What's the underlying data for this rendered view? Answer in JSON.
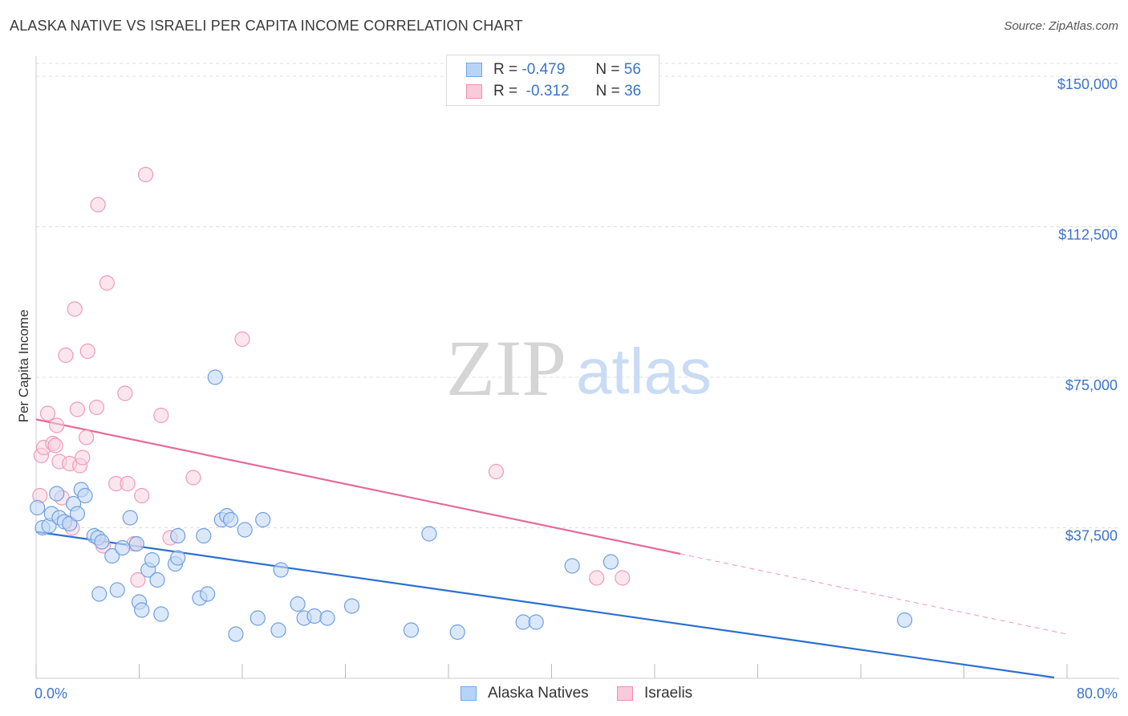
{
  "header": {
    "title": "ALASKA NATIVE VS ISRAELI PER CAPITA INCOME CORRELATION CHART",
    "source": "Source: ZipAtlas.com"
  },
  "legend": {
    "rows": [
      {
        "r_label": "R =",
        "r_value": "-0.479",
        "n_label": "N =",
        "n_value": "56",
        "color": "#6fa8f0",
        "fill": "#b9d3f7"
      },
      {
        "r_label": "R =",
        "r_value": "-0.312",
        "n_label": "N =",
        "n_value": "36",
        "color": "#f08fb0",
        "fill": "#f9cad9"
      }
    ]
  },
  "watermark": {
    "zip": "ZIP",
    "atlas": "atlas"
  },
  "colors": {
    "blue_stroke": "#6f9fe0",
    "blue_fill": "#c3d8f5",
    "blue_line": "#2e6fcf",
    "pink_stroke": "#ef9ab7",
    "pink_fill": "#f9d2df",
    "pink_line": "#e66b95"
  },
  "chart_data": {
    "type": "scatter",
    "title": "ALASKA NATIVE VS ISRAELI PER CAPITA INCOME CORRELATION CHART",
    "xlabel": "",
    "ylabel": "Per Capita Income",
    "xlim": [
      0,
      80
    ],
    "ylim": [
      0,
      155000
    ],
    "x_tick_labels": [
      "0.0%",
      "80.0%"
    ],
    "y_ticks": [
      {
        "value": 37500,
        "label": "$37,500"
      },
      {
        "value": 75000,
        "label": "$75,000"
      },
      {
        "value": 112500,
        "label": "$112,500"
      },
      {
        "value": 150000,
        "label": "$150,000"
      }
    ],
    "series": [
      {
        "name": "Alaska Natives",
        "points": [
          [
            0.1,
            42500
          ],
          [
            0.5,
            37500
          ],
          [
            1.0,
            38000
          ],
          [
            1.2,
            41000
          ],
          [
            1.6,
            46000
          ],
          [
            1.8,
            40000
          ],
          [
            2.2,
            39000
          ],
          [
            2.6,
            38500
          ],
          [
            2.9,
            43500
          ],
          [
            3.2,
            41000
          ],
          [
            3.5,
            47000
          ],
          [
            3.8,
            45500
          ],
          [
            4.5,
            35500
          ],
          [
            4.8,
            35000
          ],
          [
            5.1,
            34000
          ],
          [
            4.9,
            21000
          ],
          [
            5.9,
            30500
          ],
          [
            6.3,
            22000
          ],
          [
            6.7,
            32500
          ],
          [
            7.3,
            40000
          ],
          [
            7.8,
            33500
          ],
          [
            8.0,
            19000
          ],
          [
            8.2,
            17000
          ],
          [
            8.7,
            27000
          ],
          [
            9.0,
            29500
          ],
          [
            9.4,
            24500
          ],
          [
            9.7,
            16000
          ],
          [
            10.8,
            28500
          ],
          [
            11.0,
            30000
          ],
          [
            11.0,
            35500
          ],
          [
            12.7,
            20000
          ],
          [
            13.0,
            35500
          ],
          [
            13.3,
            21000
          ],
          [
            13.9,
            75000
          ],
          [
            14.4,
            39500
          ],
          [
            14.8,
            40500
          ],
          [
            15.1,
            39500
          ],
          [
            15.5,
            11000
          ],
          [
            16.2,
            37000
          ],
          [
            17.2,
            15000
          ],
          [
            17.6,
            39500
          ],
          [
            18.8,
            12000
          ],
          [
            19.0,
            27000
          ],
          [
            20.3,
            18500
          ],
          [
            20.8,
            15000
          ],
          [
            21.6,
            15500
          ],
          [
            22.6,
            15000
          ],
          [
            24.5,
            18000
          ],
          [
            29.1,
            12000
          ],
          [
            30.5,
            36000
          ],
          [
            32.7,
            11500
          ],
          [
            37.8,
            14000
          ],
          [
            38.8,
            14000
          ],
          [
            41.6,
            28000
          ],
          [
            44.6,
            29000
          ],
          [
            67.4,
            14500
          ]
        ],
        "trend": {
          "x": [
            0,
            79
          ],
          "y": [
            36500,
            200
          ]
        }
      },
      {
        "name": "Israelis",
        "points": [
          [
            0.3,
            45500
          ],
          [
            0.4,
            55500
          ],
          [
            0.6,
            57500
          ],
          [
            0.9,
            66000
          ],
          [
            1.3,
            58500
          ],
          [
            1.5,
            58000
          ],
          [
            1.6,
            63000
          ],
          [
            1.8,
            54000
          ],
          [
            2.0,
            45000
          ],
          [
            2.3,
            80500
          ],
          [
            2.6,
            53500
          ],
          [
            2.8,
            37500
          ],
          [
            3.0,
            92000
          ],
          [
            3.2,
            67000
          ],
          [
            3.4,
            53000
          ],
          [
            3.6,
            55000
          ],
          [
            3.9,
            60000
          ],
          [
            4.0,
            81500
          ],
          [
            4.7,
            67500
          ],
          [
            4.8,
            118000
          ],
          [
            5.2,
            33000
          ],
          [
            5.5,
            98500
          ],
          [
            6.2,
            48500
          ],
          [
            6.9,
            71000
          ],
          [
            7.1,
            48500
          ],
          [
            7.6,
            33500
          ],
          [
            7.9,
            24500
          ],
          [
            8.2,
            45500
          ],
          [
            8.5,
            125500
          ],
          [
            9.7,
            65500
          ],
          [
            10.4,
            35000
          ],
          [
            12.2,
            50000
          ],
          [
            16.0,
            84500
          ],
          [
            35.7,
            51500
          ],
          [
            43.5,
            25000
          ],
          [
            45.5,
            25000
          ]
        ],
        "trend": {
          "x": [
            0,
            50
          ],
          "y": [
            64500,
            31000
          ]
        },
        "trend_dashed": {
          "x": [
            50,
            80
          ],
          "y": [
            31000,
            11000
          ]
        }
      }
    ]
  }
}
